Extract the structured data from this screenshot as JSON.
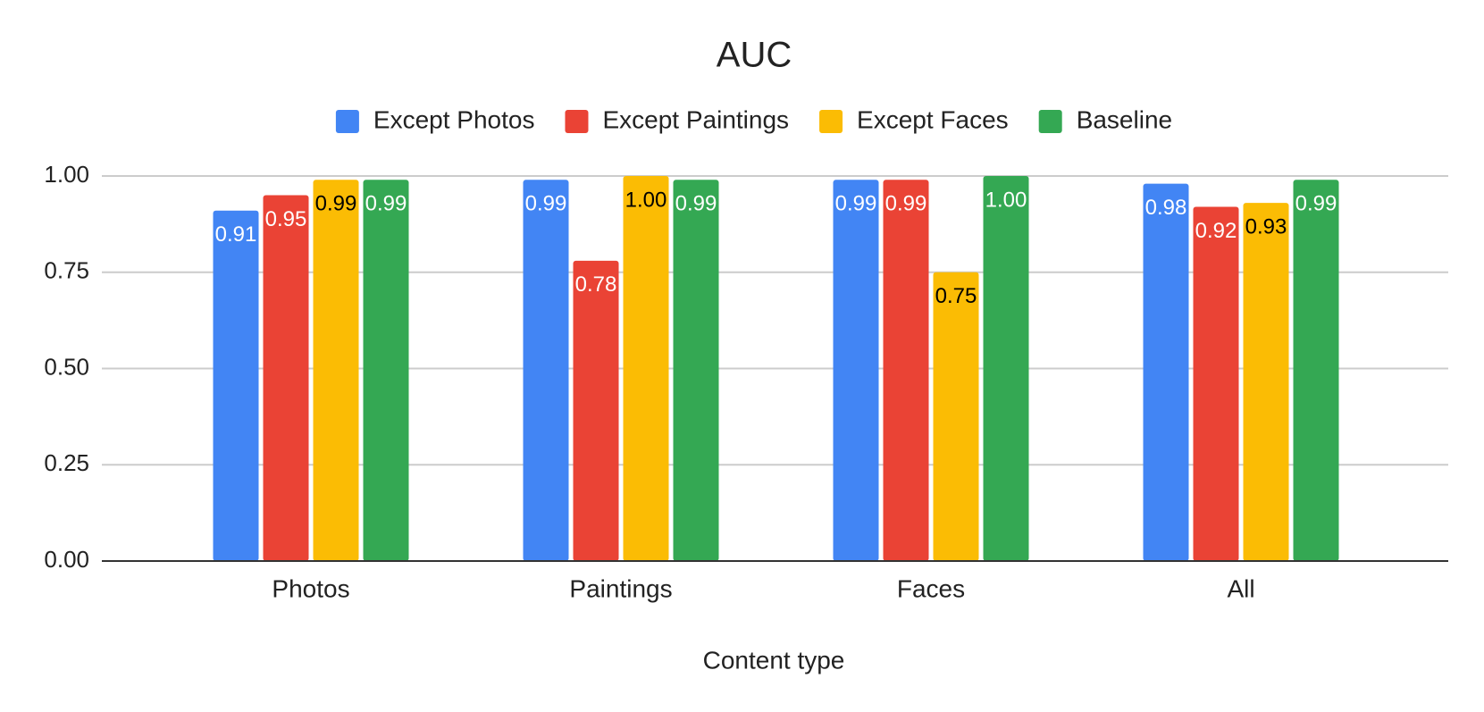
{
  "chart_data": {
    "type": "bar",
    "title": "AUC",
    "x_label": "Content type",
    "categories": [
      "Photos",
      "Paintings",
      "Faces",
      "All"
    ],
    "series": [
      {
        "name": "Except Photos",
        "color": "#4285f4",
        "values": [
          0.91,
          0.99,
          0.99,
          0.98
        ],
        "value_labels": [
          "0.91",
          "0.99",
          "0.99",
          "0.98"
        ]
      },
      {
        "name": "Except Paintings",
        "color": "#ea4335",
        "values": [
          0.95,
          0.78,
          0.99,
          0.92
        ],
        "value_labels": [
          "0.95",
          "0.78",
          "0.99",
          "0.92"
        ]
      },
      {
        "name": "Except Faces",
        "color": "#fbbc04",
        "values": [
          0.99,
          1.0,
          0.75,
          0.93
        ],
        "value_labels": [
          "0.99",
          "1.00",
          "0.75",
          "0.93"
        ]
      },
      {
        "name": "Baseline",
        "color": "#34a853",
        "values": [
          0.99,
          0.99,
          1.0,
          0.99
        ],
        "value_labels": [
          "0.99",
          "0.99",
          "1.00",
          "0.99"
        ]
      }
    ],
    "ylim": [
      0,
      1
    ],
    "yticks": [
      {
        "value": 0,
        "label": "0.00"
      },
      0.25,
      {
        "value": 0.5,
        "label": "0.50"
      },
      0.75,
      {
        "value": 1,
        "label": "1.00"
      }
    ],
    "grid": true,
    "legend": "top"
  }
}
